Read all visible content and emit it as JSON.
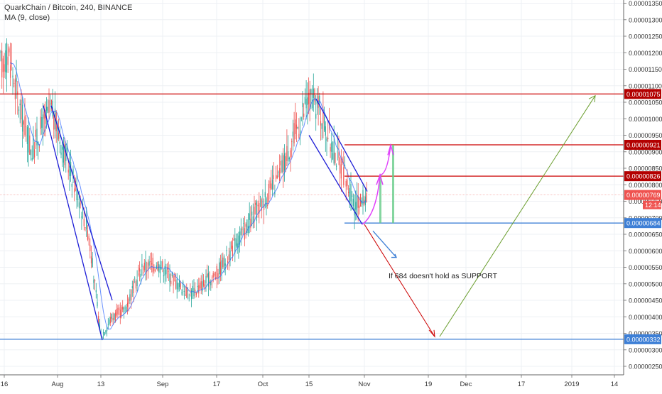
{
  "header": {
    "symbol_line": "QuarkChain / Bitcoin, 240, BINANCE",
    "indicator": "MA (9, close)"
  },
  "colors": {
    "up": "#26a69a",
    "down": "#ef5350",
    "ma": "#2962ff",
    "resistance": "#cc0000",
    "support": "#3d7fd6",
    "channel": "#1e1ed6",
    "projection_up": "#6a9e2e",
    "projection_down": "#cc0000",
    "arrow_magenta": "#e040fb",
    "target_bar": "#66cc88",
    "current_price": "#ef5350"
  },
  "chart_data": {
    "type": "candlestick",
    "symbol": "QuarkChain / Bitcoin",
    "interval": "240",
    "exchange": "BINANCE",
    "indicator": "MA (9, close)",
    "ylim": [
      2.5e-06,
      1.35e-05
    ],
    "y_ticks": [
      "0.00001350",
      "0.00001300",
      "0.00001250",
      "0.00001200",
      "0.00001150",
      "0.00001100",
      "0.00001050",
      "0.00001000",
      "0.00000950",
      "0.00000900",
      "0.00000850",
      "0.00000800",
      "0.00000750",
      "0.00000700",
      "0.00000650",
      "0.00000600",
      "0.00000550",
      "0.00000500",
      "0.00000450",
      "0.00000400",
      "0.00000350",
      "0.00000300",
      "0.00000250"
    ],
    "x_ticks": [
      "16",
      "Aug",
      "13",
      "Sep",
      "17",
      "Oct",
      "15",
      "Nov",
      "19",
      "Dec",
      "17",
      "2019",
      "14"
    ],
    "price_path": [
      [
        "16",
        1.16e-05
      ],
      [
        "Jul 18",
        1.2e-05
      ],
      [
        "Jul 20",
        1.03e-05
      ],
      [
        "Jul 23",
        9e-06
      ],
      [
        "Jul 25",
        9.8e-06
      ],
      [
        "Jul 28",
        1.03e-05
      ],
      [
        "Jul 30",
        9.7e-06
      ],
      [
        "Aug 3",
        8.7e-06
      ],
      [
        "Aug 6",
        7.7e-06
      ],
      [
        "Aug 9",
        6.5e-06
      ],
      [
        "13",
        3.4e-06
      ],
      [
        "Aug 16",
        4e-06
      ],
      [
        "Aug 20",
        4.2e-06
      ],
      [
        "Aug 25",
        5.5e-06
      ],
      [
        "Aug 30",
        5.6e-06
      ],
      [
        "Sep",
        5.5e-06
      ],
      [
        "Sep 7",
        5e-06
      ],
      [
        "Sep 12",
        4.7e-06
      ],
      [
        "17",
        5.3e-06
      ],
      [
        "Sep 22",
        6e-06
      ],
      [
        "Sep 27",
        6.8e-06
      ],
      [
        "Oct",
        7.5e-06
      ],
      [
        "Oct 6",
        8.1e-06
      ],
      [
        "Oct 11",
        9.3e-06
      ],
      [
        "15",
        1.06e-05
      ],
      [
        "Oct 19",
        1.03e-05
      ],
      [
        "Oct 23",
        9.3e-06
      ],
      [
        "Oct 26",
        8.3e-06
      ],
      [
        "Oct 28",
        7.3e-06
      ],
      [
        "Oct 30",
        7.7e-06
      ]
    ],
    "levels": [
      {
        "label": "0.00001075",
        "value": 1.075e-05,
        "role": "resistance"
      },
      {
        "label": "0.00000921",
        "value": 9.21e-06,
        "role": "resistance"
      },
      {
        "label": "0.00000826",
        "value": 8.26e-06,
        "role": "resistance"
      },
      {
        "label": "0.00000684",
        "value": 6.84e-06,
        "role": "support"
      },
      {
        "label": "0.00000332",
        "value": 3.32e-06,
        "role": "support"
      }
    ],
    "current_price": {
      "label": "0.00000769",
      "value": 7.69e-06,
      "countdown": "12:14"
    },
    "annotation": "If 684 doesn't hold as SUPPORT"
  }
}
